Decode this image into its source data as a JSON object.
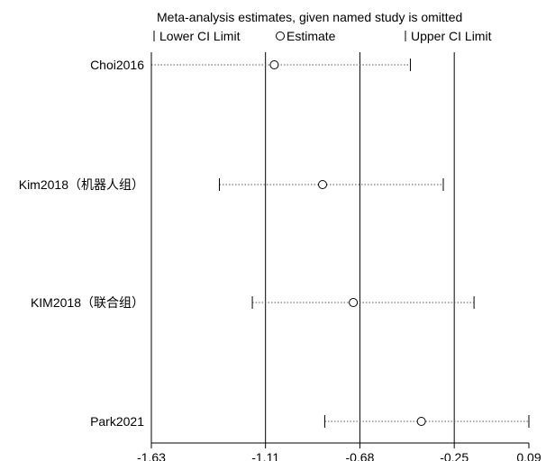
{
  "chart_data": {
    "type": "scatter",
    "title": "Meta-analysis estimates, given named study is omitted",
    "legend": {
      "placement": "top",
      "items": [
        {
          "symbol": "tick",
          "label": "Lower CI Limit"
        },
        {
          "symbol": "circle",
          "label": "Estimate"
        },
        {
          "symbol": "tick",
          "label": "Upper CI Limit"
        }
      ]
    },
    "x_axis": {
      "range": [
        -1.63,
        0.09
      ],
      "ticks": [
        -1.63,
        -1.11,
        -0.68,
        -0.25,
        0.09
      ],
      "tick_labels": [
        "-1.63",
        "-1.11",
        "-0.68",
        "-0.25",
        "0.09"
      ]
    },
    "reference_lines": [
      -1.63,
      -1.11,
      -0.68,
      -0.25
    ],
    "studies": [
      {
        "label": "Choi2016",
        "lower": -1.63,
        "estimate": -1.07,
        "upper": -0.45
      },
      {
        "label": "Kim2018（机器人组）",
        "lower": -1.32,
        "estimate": -0.85,
        "upper": -0.3
      },
      {
        "label": "KIM2018（联合组）",
        "lower": -1.17,
        "estimate": -0.71,
        "upper": -0.16
      },
      {
        "label": "Park2021",
        "lower": -0.84,
        "estimate": -0.4,
        "upper": 0.09
      }
    ],
    "grid": false,
    "colors": {
      "ink": "#000000",
      "background": "#ffffff"
    }
  }
}
